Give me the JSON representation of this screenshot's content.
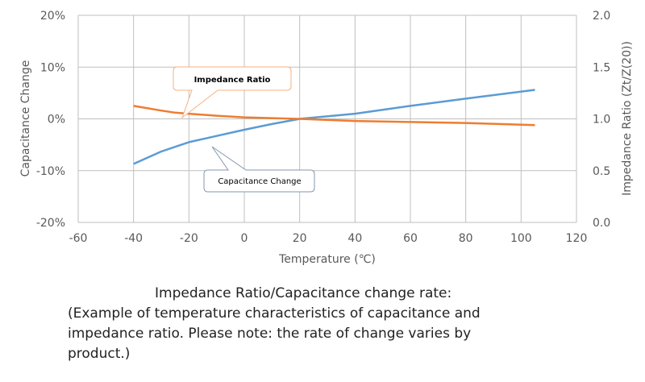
{
  "chart_data": {
    "type": "line",
    "xlabel": "Temperature (℃)",
    "ylabel_left": "Capacitance Change",
    "ylabel_right": "Impedance Ratio (Zt/Z(20))",
    "xlim": [
      -60,
      120
    ],
    "ylim_left": [
      -20,
      20
    ],
    "ylim_right": [
      0,
      2.0
    ],
    "x_ticks": [
      "-60",
      "-40",
      "-20",
      "0",
      "20",
      "40",
      "60",
      "80",
      "100",
      "120"
    ],
    "y_left_ticks": [
      "20%",
      "10%",
      "0%",
      "-10%",
      "-20%"
    ],
    "y_right_ticks": [
      "2.0",
      "1.5",
      "1.0",
      "0.5",
      "0.0"
    ],
    "grid": true,
    "series": [
      {
        "name": "Capacitance Change",
        "axis": "left",
        "unit": "%",
        "color": "#5b9bd5",
        "x": [
          -40,
          -30,
          -20,
          -10,
          0,
          10,
          20,
          40,
          60,
          80,
          105
        ],
        "y": [
          -8.7,
          -6.3,
          -4.5,
          -3.3,
          -2.1,
          -1.0,
          0,
          1.0,
          2.5,
          3.9,
          5.6
        ]
      },
      {
        "name": "Impedance Ratio",
        "axis": "right",
        "color": "#ed7d31",
        "x": [
          -40,
          -30,
          -25,
          -20,
          -10,
          0,
          10,
          20,
          40,
          60,
          80,
          105
        ],
        "y": [
          1.125,
          1.08,
          1.06,
          1.05,
          1.03,
          1.015,
          1.007,
          1.0,
          0.98,
          0.97,
          0.96,
          0.94
        ]
      }
    ],
    "annotations": [
      "Impedance Ratio",
      "Capacitance Change"
    ]
  },
  "caption": {
    "line1": "Impedance Ratio/Capacitance change rate:",
    "line2": "(Example of temperature characteristics of capacitance and",
    "line3": "impedance ratio. Please note: the rate of change varies by",
    "line4": "product.)"
  }
}
